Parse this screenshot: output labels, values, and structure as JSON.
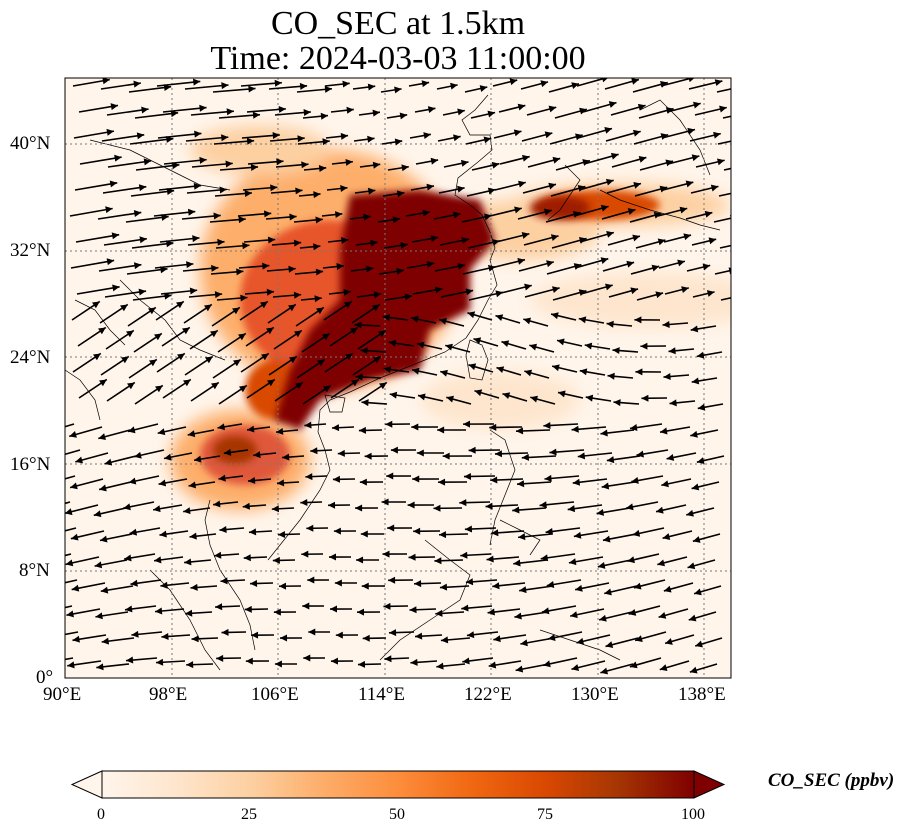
{
  "title": {
    "line1": "CO_SEC at 1.5km",
    "line2": "Time: 2024-03-03 11:00:00"
  },
  "axes": {
    "x_ticks": [
      "90°E",
      "98°E",
      "106°E",
      "114°E",
      "122°E",
      "130°E",
      "138°E"
    ],
    "y_ticks": [
      "0°",
      "8°N",
      "16°N",
      "24°N",
      "32°N",
      "40°N"
    ]
  },
  "colorbar": {
    "label": "CO_SEC (ppbv)",
    "ticks": [
      "0",
      "25",
      "50",
      "75",
      "100"
    ],
    "colors": [
      "#fff5eb",
      "#fee6ce",
      "#fdd0a2",
      "#fdae6b",
      "#fd8d3c",
      "#f16913",
      "#d94801",
      "#a63603",
      "#7f0000"
    ]
  },
  "map": {
    "ocean_color": "#fff5eb",
    "coast_color": "#000000",
    "grid_color": "#666666",
    "vector_color": "#000000"
  }
}
